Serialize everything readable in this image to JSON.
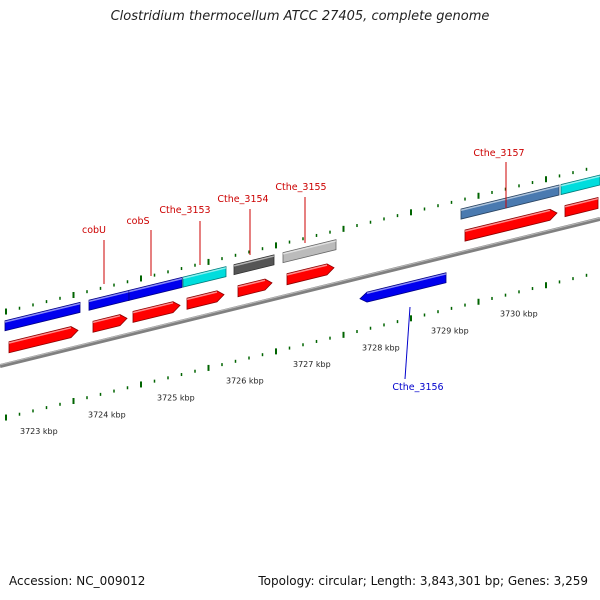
{
  "title": "Clostridium thermocellum ATCC 27405, complete genome",
  "accession": "Accession: NC_009012",
  "summary": "Topology: circular; Length: 3,843,301 bp; Genes: 3,259",
  "colors": {
    "backbone": "#808080",
    "cds": "#ff0000",
    "gene_blue": "#0000ee",
    "gene_cyan": "#00dddd",
    "gene_dark_gray": "#555555",
    "gene_light_gray": "#bbbbbb",
    "gene_steel": "#4a7ab0",
    "label_forward": "#cc0000",
    "label_reverse": "#0000cc",
    "tick": "#006400"
  },
  "scale": {
    "unit": "kbp",
    "labels": [
      "3723 kbp",
      "3724 kbp",
      "3725 kbp",
      "3726 kbp",
      "3727 kbp",
      "3728 kbp",
      "3729 kbp",
      "3730 kbp"
    ]
  },
  "genes": [
    {
      "label": "",
      "strand": "forward",
      "color": "gene_blue"
    },
    {
      "label": "cobU",
      "strand": "forward",
      "color": "gene_blue"
    },
    {
      "label": "cobS",
      "strand": "forward",
      "color": "gene_blue"
    },
    {
      "label": "Cthe_3153",
      "strand": "forward",
      "color": "gene_cyan"
    },
    {
      "label": "Cthe_3154",
      "strand": "forward",
      "color": "gene_dark_gray"
    },
    {
      "label": "Cthe_3155",
      "strand": "forward",
      "color": "gene_light_gray"
    },
    {
      "label": "Cthe_3156",
      "strand": "reverse",
      "color": "gene_blue"
    },
    {
      "label": "Cthe_3157",
      "strand": "forward",
      "color": "gene_steel"
    },
    {
      "label": "",
      "strand": "forward",
      "color": "gene_cyan"
    }
  ]
}
